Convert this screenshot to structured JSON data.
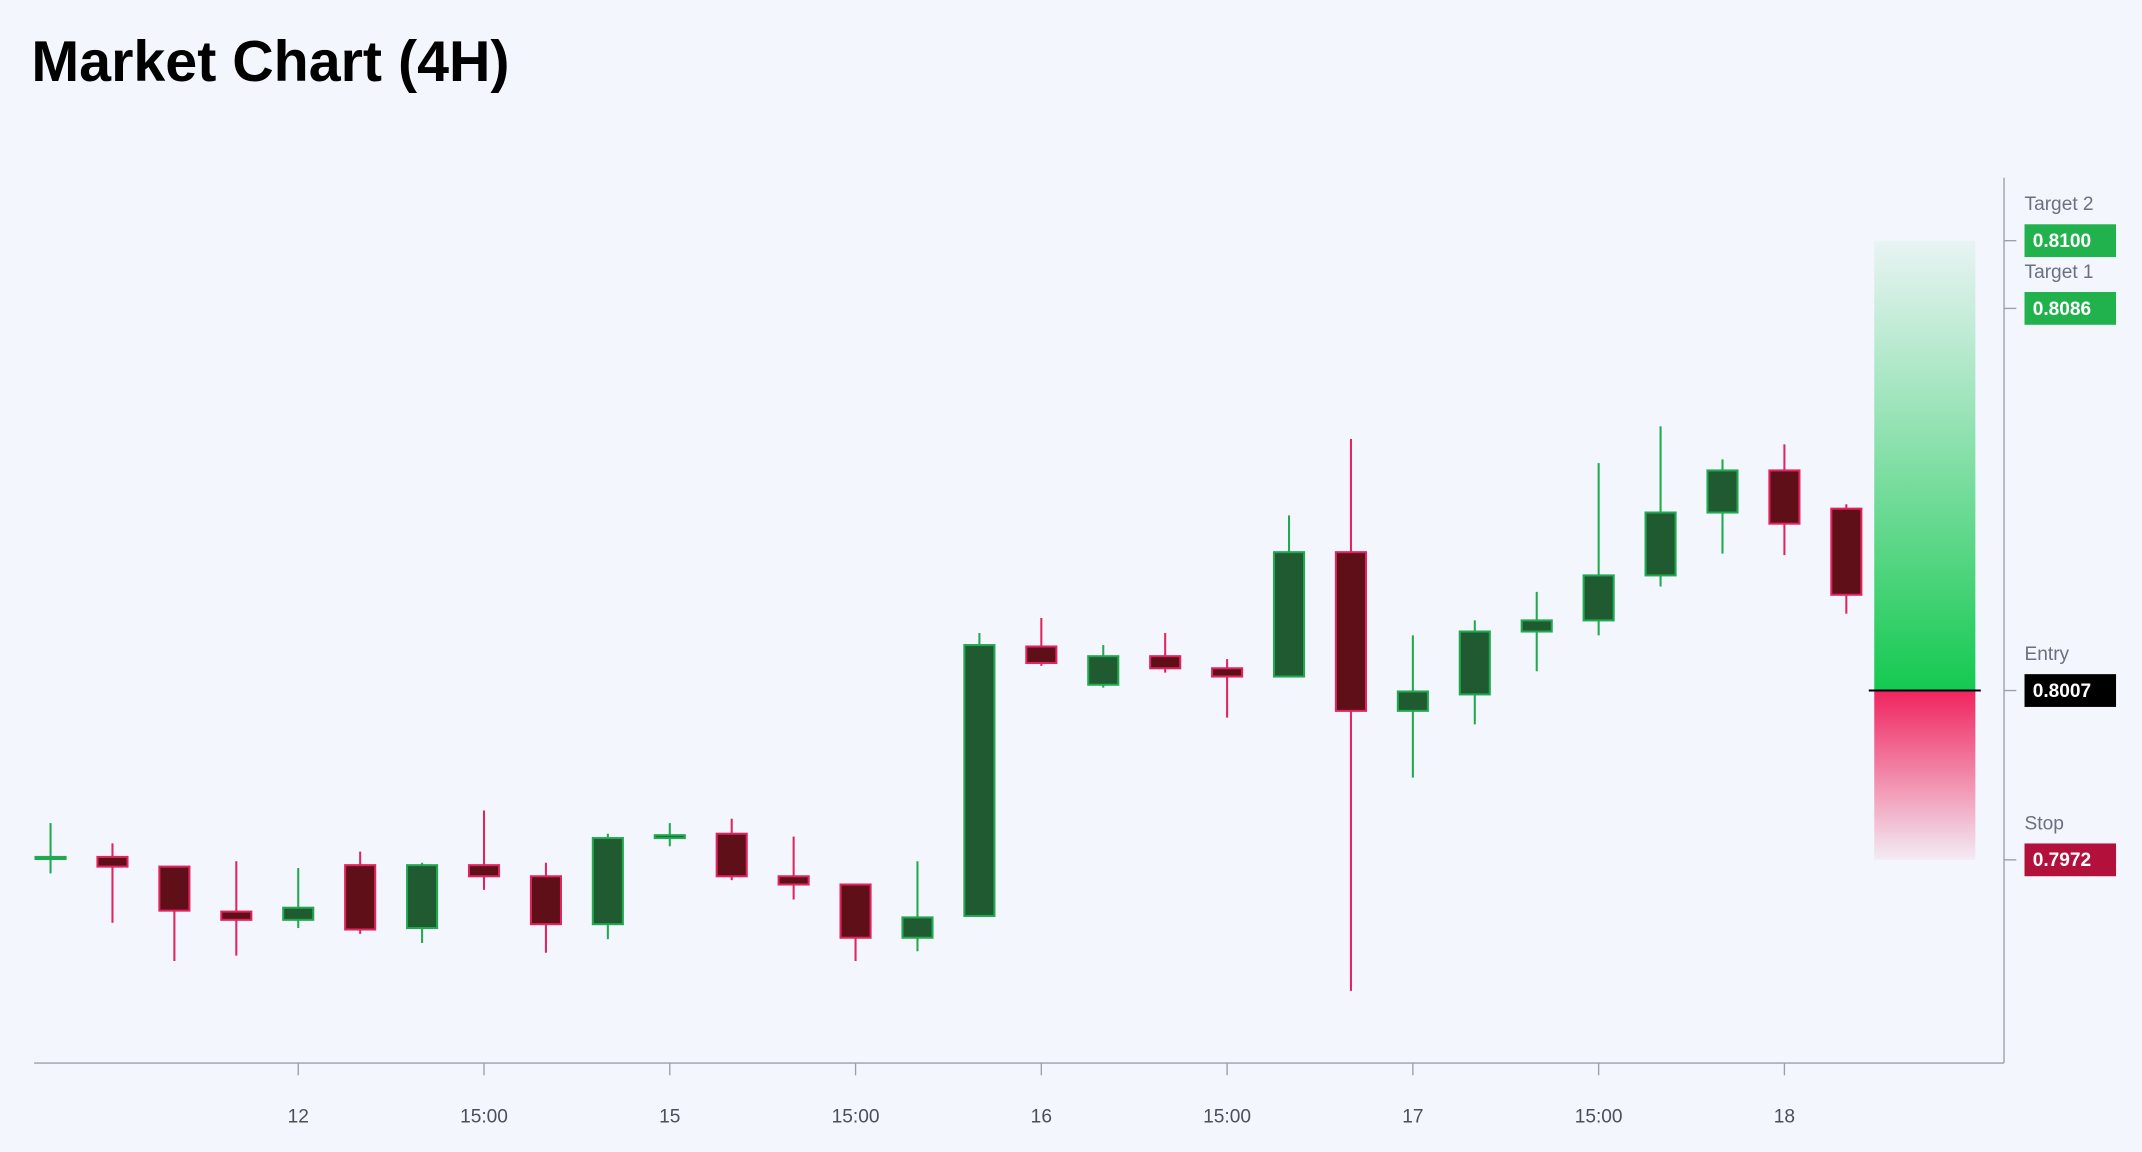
{
  "chart_data": {
    "type": "candlestick",
    "title": "Market Chart (4H)",
    "categories": [
      null,
      null,
      null,
      null,
      "12",
      null,
      null,
      "15:00",
      null,
      null,
      "15",
      null,
      null,
      "15:00",
      null,
      null,
      "16",
      null,
      null,
      "15:00",
      null,
      null,
      "17",
      null,
      null,
      "15:00",
      null,
      null,
      "18",
      null
    ],
    "open": [
      0.79723,
      0.79726,
      0.79706,
      0.79613,
      0.79596,
      0.79709,
      0.79579,
      0.79709,
      0.79686,
      0.79587,
      0.79765,
      0.79774,
      0.79686,
      0.79669,
      0.79559,
      0.79604,
      0.80161,
      0.80082,
      0.80141,
      0.80116,
      0.80099,
      0.80356,
      0.80028,
      0.80062,
      0.80192,
      0.80215,
      0.80308,
      0.80438,
      0.80525,
      0.80446
    ],
    "high": [
      0.79796,
      0.79754,
      0.79706,
      0.79717,
      0.79703,
      0.79737,
      0.79714,
      0.79822,
      0.79714,
      0.79774,
      0.79796,
      0.79805,
      0.79768,
      0.79669,
      0.79717,
      0.80189,
      0.8022,
      0.80164,
      0.80189,
      0.80135,
      0.80432,
      0.8059,
      0.80184,
      0.80215,
      0.80274,
      0.8054,
      0.80616,
      0.80548,
      0.80579,
      0.80455
    ],
    "low": [
      0.79692,
      0.7959,
      0.79511,
      0.79522,
      0.79579,
      0.79567,
      0.79548,
      0.79658,
      0.79528,
      0.79556,
      0.79748,
      0.79678,
      0.79638,
      0.79511,
      0.79531,
      0.79604,
      0.80121,
      0.80076,
      0.80107,
      0.80014,
      0.80099,
      0.79449,
      0.7989,
      0.8,
      0.8011,
      0.80184,
      0.80285,
      0.80353,
      0.8035,
      0.80229
    ],
    "close": [
      0.79726,
      0.79706,
      0.79615,
      0.79596,
      0.79621,
      0.79576,
      0.79709,
      0.79686,
      0.79587,
      0.79765,
      0.79771,
      0.79686,
      0.79669,
      0.79559,
      0.79601,
      0.80164,
      0.80127,
      0.80141,
      0.80116,
      0.80099,
      0.80356,
      0.80028,
      0.80068,
      0.80192,
      0.80215,
      0.80308,
      0.80438,
      0.80525,
      0.80415,
      0.80268
    ],
    "ylim": [
      0.793,
      0.8113
    ],
    "up_color": "#22a94f",
    "up_fill": "#1f5a30",
    "down_color": "#e0245e",
    "down_fill": "#5e0f17",
    "levels": [
      {
        "name": "Target 2",
        "value": 0.81,
        "value_label": "0.8100",
        "color": "#21b24d"
      },
      {
        "name": "Target 1",
        "value": 0.8086,
        "value_label": "0.8086",
        "color": "#21b24d"
      },
      {
        "name": "Entry",
        "value": 0.8007,
        "value_label": "0.8007",
        "color": "#000000"
      },
      {
        "name": "Stop",
        "value": 0.7972,
        "value_label": "0.7972",
        "color": "#b3103c"
      }
    ]
  }
}
